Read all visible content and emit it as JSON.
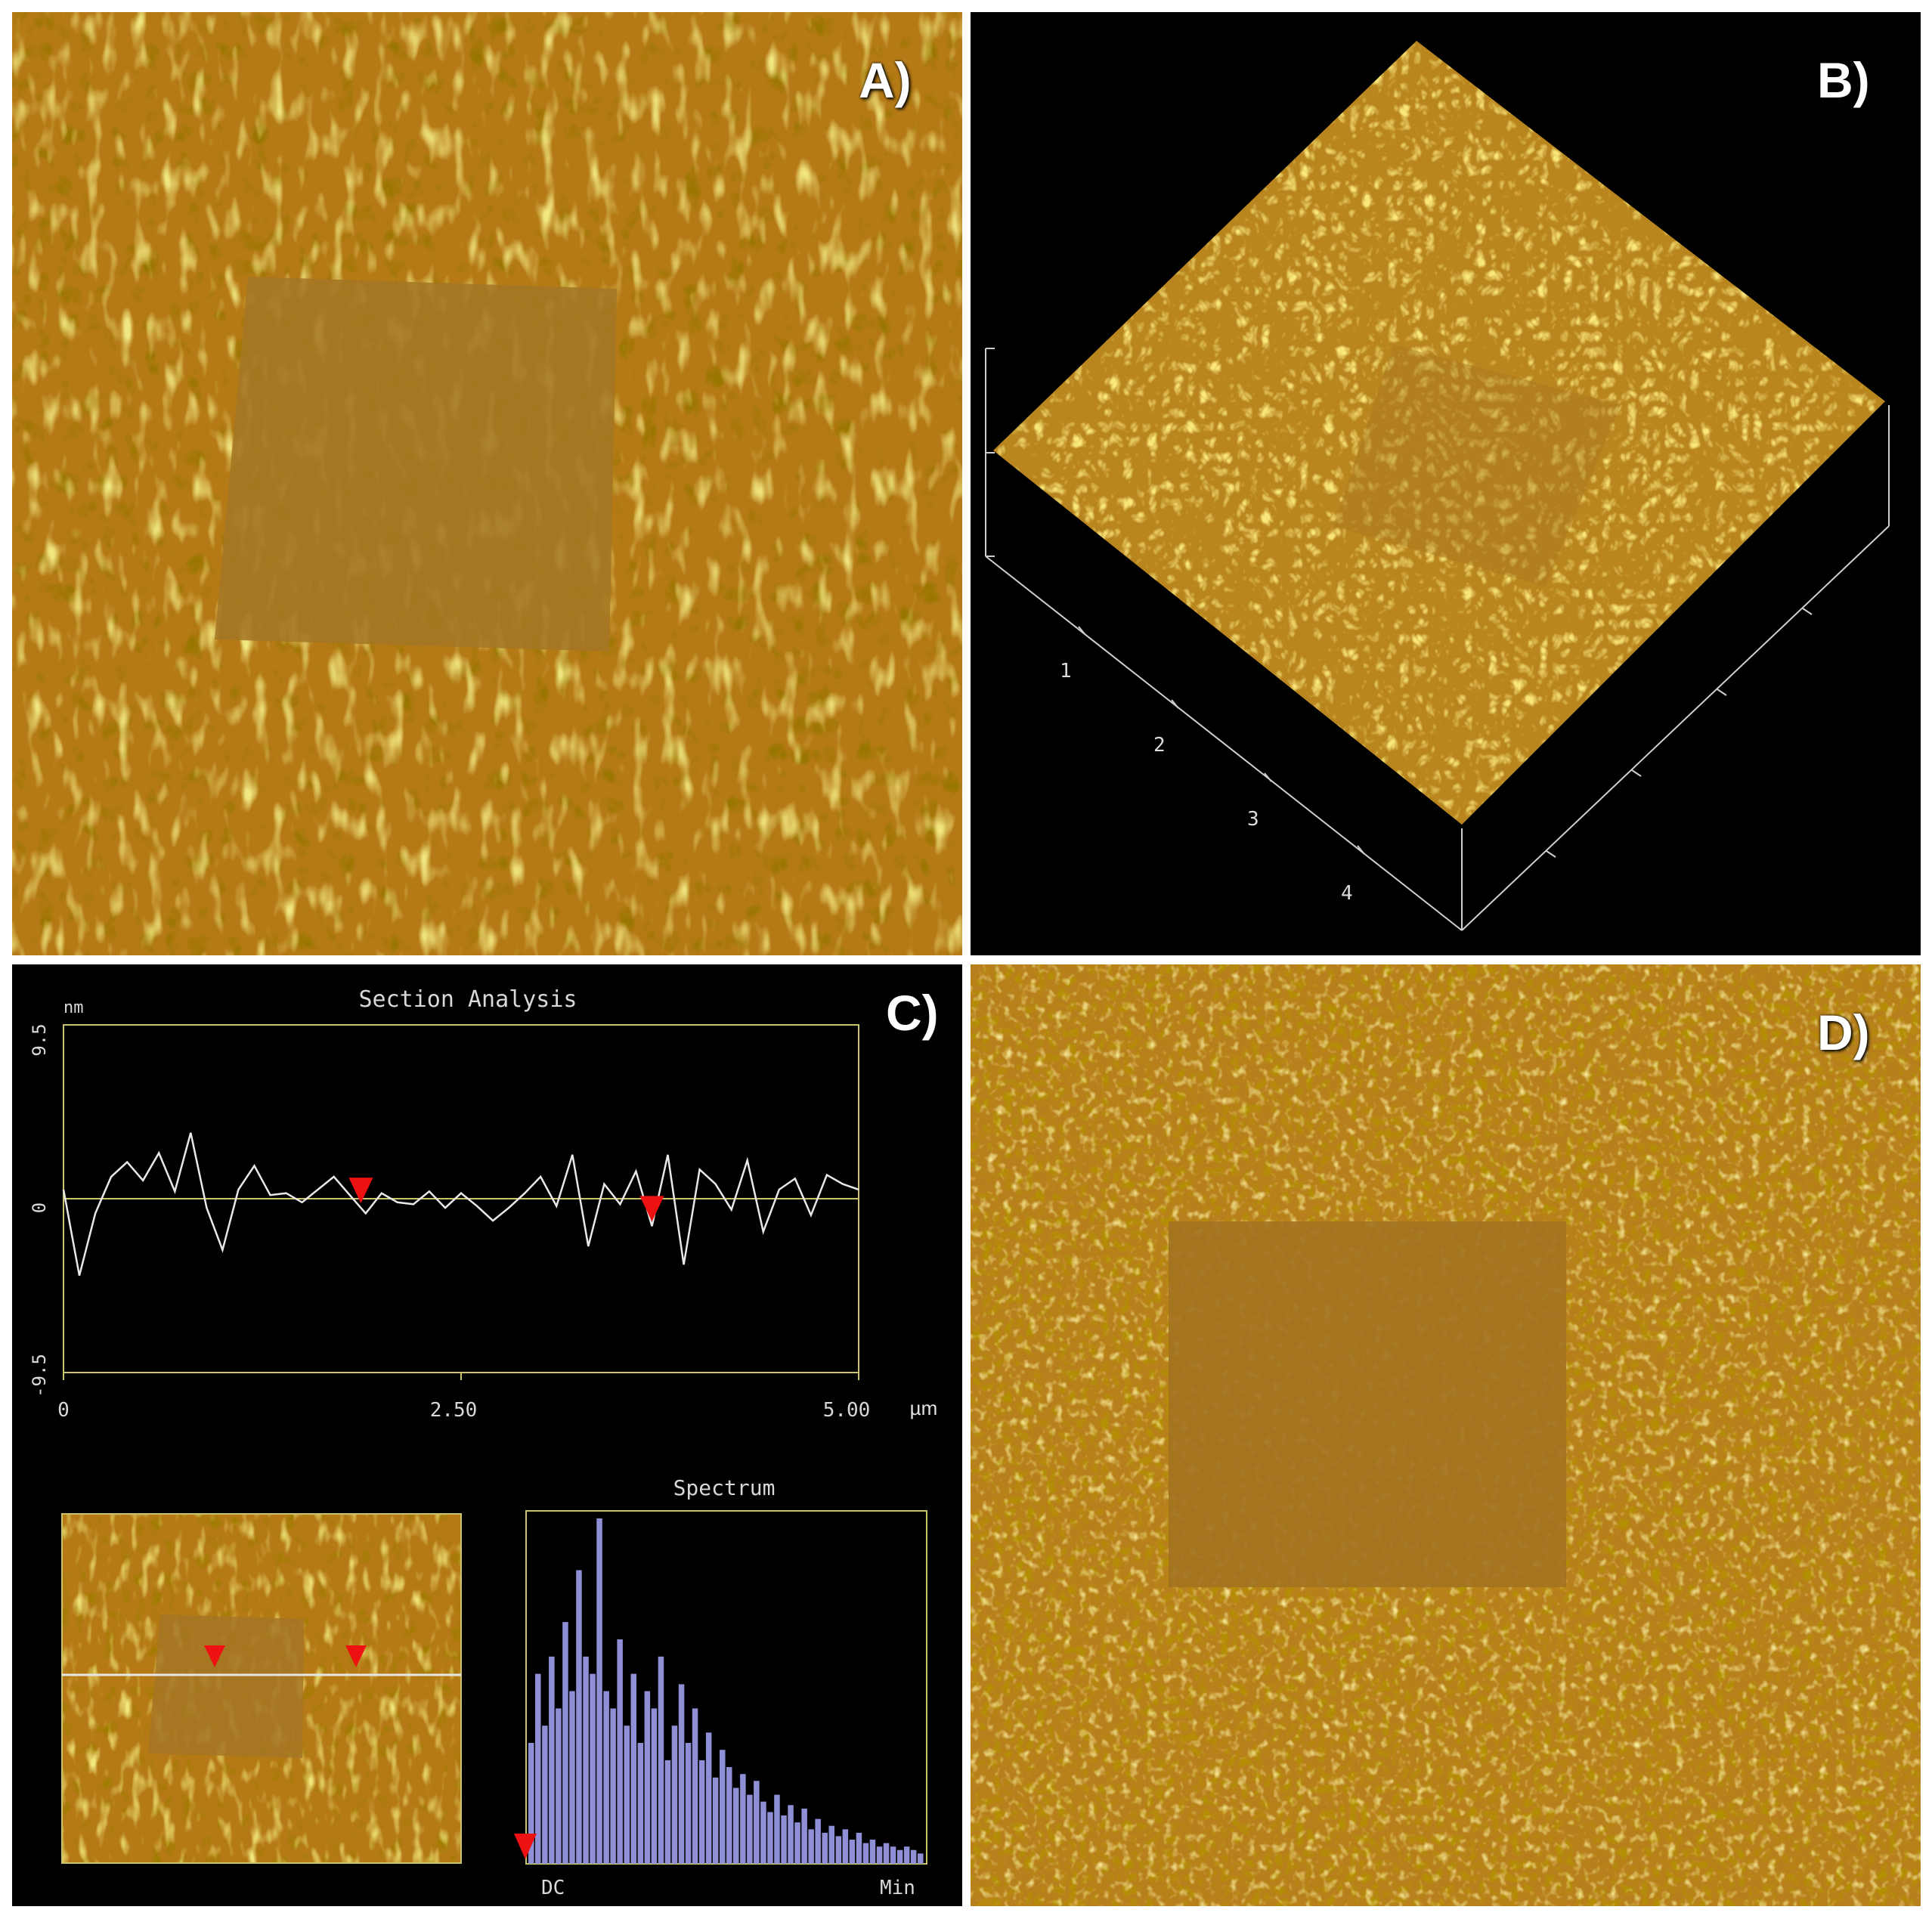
{
  "panels": {
    "a": {
      "label": "A)"
    },
    "b": {
      "label": "B)",
      "axis_ticks": [
        "1",
        "2",
        "3",
        "4"
      ]
    },
    "c": {
      "label": "C)",
      "section_title": "Section Analysis",
      "y_unit": "nm",
      "y_ticks": [
        "9.5",
        "0",
        "-9.5"
      ],
      "x_ticks": [
        "0",
        "2.50",
        "5.00"
      ],
      "x_unit": "µm",
      "spectrum_title": "Spectrum",
      "spectrum_x_left": "DC",
      "spectrum_x_right": "Min",
      "colors": {
        "frame": "#c9c36a",
        "trace": "#e8e8e8",
        "marker": "#ee1111",
        "spectrum": "#8f8fd6"
      }
    },
    "d": {
      "label": "D)"
    }
  },
  "chart_data": {
    "type": "line",
    "title": "Section Analysis",
    "ylabel": "nm",
    "xlabel": "µm",
    "xlim": [
      0,
      5.0
    ],
    "ylim": [
      -9.5,
      9.5
    ],
    "x": [
      0.0,
      0.1,
      0.2,
      0.3,
      0.4,
      0.5,
      0.6,
      0.7,
      0.8,
      0.9,
      1.0,
      1.1,
      1.2,
      1.3,
      1.4,
      1.5,
      1.6,
      1.7,
      1.8,
      1.9,
      2.0,
      2.1,
      2.2,
      2.3,
      2.4,
      2.5,
      2.6,
      2.7,
      2.8,
      2.9,
      3.0,
      3.1,
      3.2,
      3.3,
      3.4,
      3.5,
      3.6,
      3.7,
      3.8,
      3.9,
      4.0,
      4.1,
      4.2,
      4.3,
      4.4,
      4.5,
      4.6,
      4.7,
      4.8,
      4.9,
      5.0
    ],
    "y": [
      0.5,
      -4.2,
      -0.8,
      1.2,
      2.0,
      1.0,
      2.5,
      0.4,
      3.6,
      -0.5,
      -2.8,
      0.5,
      1.8,
      0.2,
      0.3,
      -0.2,
      0.5,
      1.2,
      0.2,
      -0.8,
      0.3,
      -0.2,
      -0.3,
      0.4,
      -0.5,
      0.3,
      -0.4,
      -1.2,
      -0.5,
      0.3,
      1.2,
      -0.4,
      2.4,
      -2.6,
      0.8,
      -0.3,
      1.5,
      -1.5,
      2.4,
      -3.6,
      1.6,
      0.8,
      -0.6,
      2.1,
      -1.8,
      0.5,
      1.1,
      -0.9,
      1.3,
      0.8,
      0.5
    ],
    "markers": [
      1.87,
      3.7
    ],
    "spectrum": {
      "type": "bar",
      "xlabel_left": "DC",
      "xlabel_right": "Min",
      "values": [
        0.35,
        0.55,
        0.4,
        0.6,
        0.45,
        0.7,
        0.5,
        0.85,
        0.6,
        0.55,
        1.0,
        0.5,
        0.45,
        0.65,
        0.4,
        0.55,
        0.35,
        0.5,
        0.45,
        0.6,
        0.3,
        0.4,
        0.52,
        0.35,
        0.45,
        0.3,
        0.38,
        0.25,
        0.33,
        0.28,
        0.22,
        0.26,
        0.2,
        0.24,
        0.18,
        0.15,
        0.2,
        0.14,
        0.17,
        0.12,
        0.16,
        0.1,
        0.13,
        0.09,
        0.11,
        0.08,
        0.1,
        0.07,
        0.09,
        0.06,
        0.07,
        0.05,
        0.06,
        0.05,
        0.04,
        0.05,
        0.04,
        0.03
      ]
    }
  }
}
